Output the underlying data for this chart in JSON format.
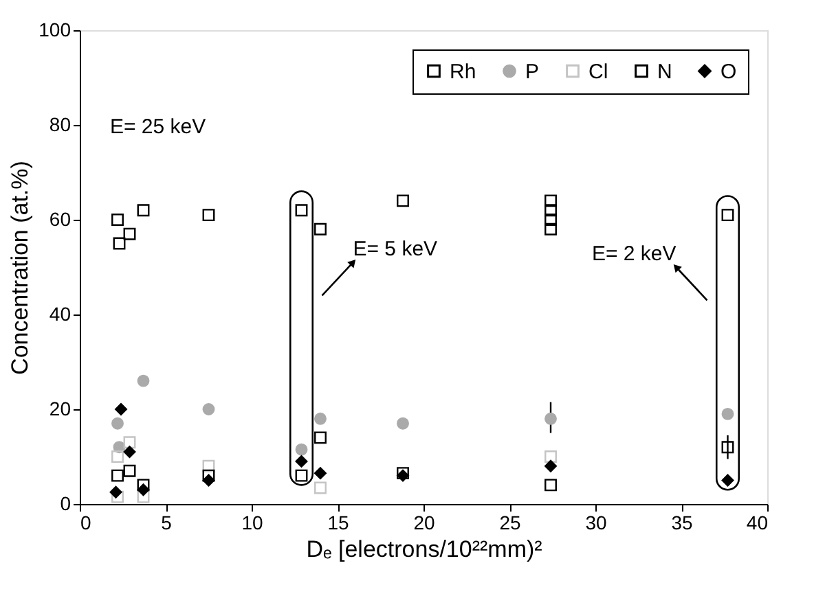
{
  "chart_data": {
    "type": "scatter",
    "xlabel": "Dₑ [electrons/10²²mm)²",
    "ylabel": "Concentration (at.%)",
    "xlim": [
      0,
      40
    ],
    "ylim": [
      0,
      100
    ],
    "xticks": [
      0,
      5,
      10,
      15,
      20,
      25,
      30,
      35,
      40
    ],
    "yticks": [
      0,
      20,
      40,
      60,
      80,
      100
    ],
    "grid": false,
    "legend": "top right",
    "annotations": [
      "E= 25 keV",
      {
        "text": "E= 5 keV",
        "x": 12.9,
        "y": 62
      },
      {
        "text": "E= 2 keV",
        "x": 37.7,
        "y": 61
      }
    ],
    "series": [
      {
        "name": "Rh",
        "color": "#000000",
        "marker": "square",
        "x": [
          2.2,
          2.3,
          2.9,
          3.7,
          7.5,
          12.9,
          14,
          18.8,
          27.4,
          27.4,
          27.4,
          27.4,
          37.7
        ],
        "values": [
          60,
          55,
          57,
          62,
          61,
          62,
          58,
          64,
          64,
          62,
          60,
          58,
          61
        ]
      },
      {
        "name": "P",
        "color": "#aaaaaa",
        "marker": "circle",
        "x": [
          2.2,
          2.3,
          3.7,
          7.5,
          12.9,
          14,
          18.8,
          27.4,
          37.7
        ],
        "values": [
          17,
          12,
          26,
          20,
          11.5,
          18,
          17,
          18,
          19
        ],
        "errors": [
          null,
          null,
          null,
          null,
          null,
          null,
          null,
          [
            15,
            21.5
          ],
          null
        ]
      },
      {
        "name": "Cl",
        "color": "#c4c4c4",
        "marker": "square",
        "x": [
          2.2,
          2.2,
          2.9,
          3.7,
          7.5,
          14,
          18.8,
          27.4
        ],
        "values": [
          10,
          1.5,
          13,
          1.5,
          8,
          3.4,
          null,
          10
        ]
      },
      {
        "name": "N",
        "color": "#000000",
        "marker": "square",
        "x": [
          2.2,
          2.9,
          3.7,
          7.5,
          12.9,
          14,
          18.8,
          27.4,
          37.7
        ],
        "values": [
          6,
          7,
          4,
          6,
          6,
          14,
          6.5,
          4,
          12
        ],
        "errors": [
          null,
          null,
          null,
          null,
          null,
          null,
          null,
          null,
          [
            9.5,
            14.5
          ]
        ]
      },
      {
        "name": "O",
        "color": "#000000",
        "marker": "diamond",
        "x": [
          2.4,
          2.9,
          2.1,
          3.7,
          7.5,
          12.9,
          14,
          18.8,
          27.4,
          37.7
        ],
        "values": [
          20,
          11,
          2.5,
          3,
          5,
          9,
          6.5,
          6,
          8,
          5
        ]
      }
    ]
  }
}
